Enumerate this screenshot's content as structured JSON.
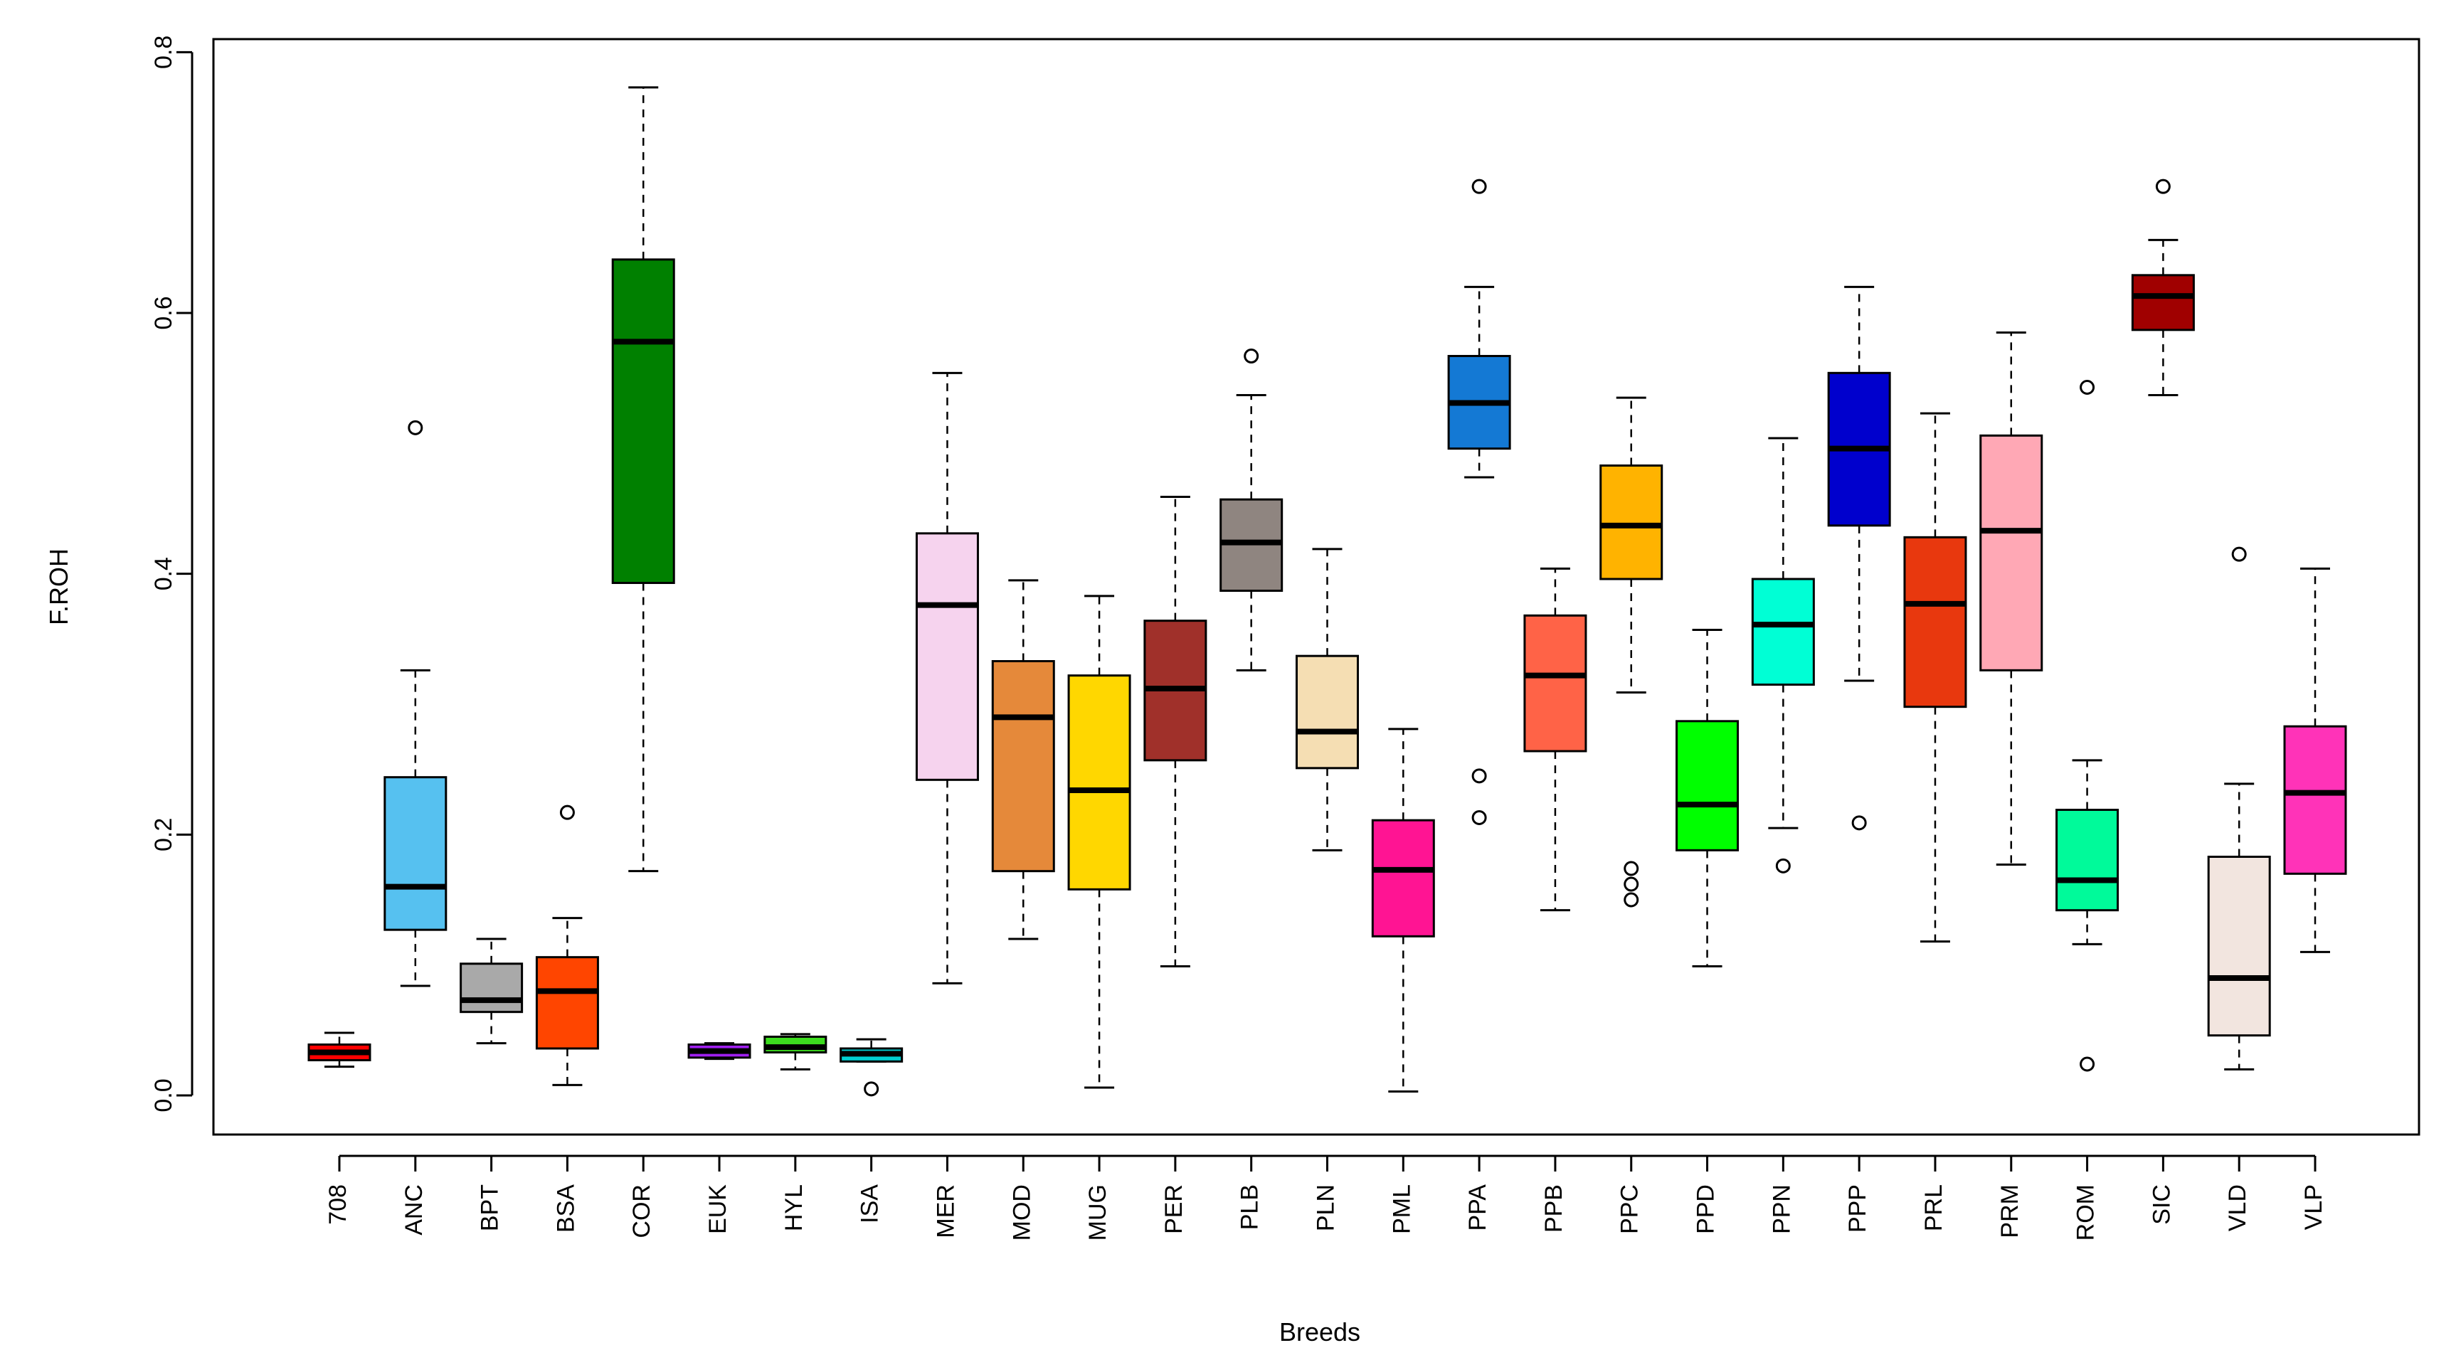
{
  "chart_data": {
    "type": "boxplot",
    "title": "",
    "xlabel": "Breeds",
    "ylabel": "F.ROH",
    "ylim": [
      -0.03,
      0.81
    ],
    "yticks": [
      "0.0",
      "0.2",
      "0.4",
      "0.6",
      "0.8"
    ],
    "grid": false,
    "categories": [
      "708",
      "ANC",
      "BPT",
      "BSA",
      "COR",
      "EUK",
      "HYL",
      "ISA",
      "MER",
      "MOD",
      "MUG",
      "PER",
      "PLB",
      "PLN",
      "PML",
      "PPA",
      "PPB",
      "PPC",
      "PPD",
      "PPN",
      "PPP",
      "PRL",
      "PRM",
      "ROM",
      "SIC",
      "VLD",
      "VLP"
    ],
    "boxes": [
      {
        "name": "708",
        "color": "#FF0000",
        "whisker_low": 0.022,
        "q1": 0.027,
        "median": 0.033,
        "q3": 0.039,
        "whisker_high": 0.048,
        "outliers": []
      },
      {
        "name": "ANC",
        "color": "#56C1F0",
        "whisker_low": 0.084,
        "q1": 0.127,
        "median": 0.16,
        "q3": 0.244,
        "whisker_high": 0.326,
        "outliers": [
          0.512
        ]
      },
      {
        "name": "BPT",
        "color": "#A9A9A9",
        "whisker_low": 0.04,
        "q1": 0.064,
        "median": 0.073,
        "q3": 0.101,
        "whisker_high": 0.12,
        "outliers": []
      },
      {
        "name": "BSA",
        "color": "#FF4500",
        "whisker_low": 0.008,
        "q1": 0.036,
        "median": 0.08,
        "q3": 0.106,
        "whisker_high": 0.136,
        "outliers": [
          0.217
        ]
      },
      {
        "name": "COR",
        "color": "#008000",
        "whisker_low": 0.172,
        "q1": 0.393,
        "median": 0.578,
        "q3": 0.641,
        "whisker_high": 0.773,
        "outliers": []
      },
      {
        "name": "EUK",
        "color": "#A020F0",
        "whisker_low": 0.028,
        "q1": 0.029,
        "median": 0.034,
        "q3": 0.039,
        "whisker_high": 0.04,
        "outliers": []
      },
      {
        "name": "HYL",
        "color": "#3CDC1E",
        "whisker_low": 0.02,
        "q1": 0.033,
        "median": 0.037,
        "q3": 0.045,
        "whisker_high": 0.047,
        "outliers": []
      },
      {
        "name": "ISA",
        "color": "#00CED1",
        "whisker_low": 0.026,
        "q1": 0.026,
        "median": 0.032,
        "q3": 0.036,
        "whisker_high": 0.043,
        "outliers": [
          0.005
        ]
      },
      {
        "name": "MER",
        "color": "#F6D3EE",
        "whisker_low": 0.086,
        "q1": 0.242,
        "median": 0.376,
        "q3": 0.431,
        "whisker_high": 0.554,
        "outliers": []
      },
      {
        "name": "MOD",
        "color": "#E5893A",
        "whisker_low": 0.12,
        "q1": 0.172,
        "median": 0.29,
        "q3": 0.333,
        "whisker_high": 0.395,
        "outliers": []
      },
      {
        "name": "MUG",
        "color": "#FFD700",
        "whisker_low": 0.006,
        "q1": 0.158,
        "median": 0.234,
        "q3": 0.322,
        "whisker_high": 0.383,
        "outliers": []
      },
      {
        "name": "PER",
        "color": "#A0302A",
        "whisker_low": 0.099,
        "q1": 0.257,
        "median": 0.312,
        "q3": 0.364,
        "whisker_high": 0.459,
        "outliers": []
      },
      {
        "name": "PLB",
        "color": "#8F8580",
        "whisker_low": 0.326,
        "q1": 0.387,
        "median": 0.424,
        "q3": 0.457,
        "whisker_high": 0.537,
        "outliers": [
          0.567
        ]
      },
      {
        "name": "PLN",
        "color": "#F5DEB3",
        "whisker_low": 0.188,
        "q1": 0.251,
        "median": 0.279,
        "q3": 0.337,
        "whisker_high": 0.419,
        "outliers": []
      },
      {
        "name": "PML",
        "color": "#FF1493",
        "whisker_low": 0.003,
        "q1": 0.122,
        "median": 0.173,
        "q3": 0.211,
        "whisker_high": 0.281,
        "outliers": []
      },
      {
        "name": "PPA",
        "color": "#1479D4",
        "whisker_low": 0.474,
        "q1": 0.496,
        "median": 0.531,
        "q3": 0.567,
        "whisker_high": 0.62,
        "outliers": [
          0.697,
          0.245,
          0.213
        ]
      },
      {
        "name": "PPB",
        "color": "#FF6347",
        "whisker_low": 0.142,
        "q1": 0.264,
        "median": 0.322,
        "q3": 0.368,
        "whisker_high": 0.404,
        "outliers": []
      },
      {
        "name": "PPC",
        "color": "#FFB300",
        "whisker_low": 0.309,
        "q1": 0.396,
        "median": 0.437,
        "q3": 0.483,
        "whisker_high": 0.535,
        "outliers": [
          0.174,
          0.162,
          0.15
        ]
      },
      {
        "name": "PPD",
        "color": "#00FF00",
        "whisker_low": 0.099,
        "q1": 0.188,
        "median": 0.223,
        "q3": 0.287,
        "whisker_high": 0.357,
        "outliers": []
      },
      {
        "name": "PPN",
        "color": "#00FFD5",
        "whisker_low": 0.205,
        "q1": 0.315,
        "median": 0.361,
        "q3": 0.396,
        "whisker_high": 0.504,
        "outliers": [
          0.176
        ]
      },
      {
        "name": "PPP",
        "color": "#0000CD",
        "whisker_low": 0.318,
        "q1": 0.437,
        "median": 0.496,
        "q3": 0.554,
        "whisker_high": 0.62,
        "outliers": [
          0.209
        ]
      },
      {
        "name": "PRL",
        "color": "#E8380E",
        "whisker_low": 0.118,
        "q1": 0.298,
        "median": 0.377,
        "q3": 0.428,
        "whisker_high": 0.523,
        "outliers": []
      },
      {
        "name": "PRM",
        "color": "#FFA8B5",
        "whisker_low": 0.177,
        "q1": 0.326,
        "median": 0.433,
        "q3": 0.506,
        "whisker_high": 0.585,
        "outliers": []
      },
      {
        "name": "ROM",
        "color": "#00FA9A",
        "whisker_low": 0.116,
        "q1": 0.142,
        "median": 0.165,
        "q3": 0.219,
        "whisker_high": 0.257,
        "outliers": [
          0.543,
          0.024
        ]
      },
      {
        "name": "SIC",
        "color": "#A00000",
        "whisker_low": 0.537,
        "q1": 0.587,
        "median": 0.613,
        "q3": 0.629,
        "whisker_high": 0.656,
        "outliers": [
          0.697
        ]
      },
      {
        "name": "VLD",
        "color": "#F2E5DF",
        "whisker_low": 0.02,
        "q1": 0.046,
        "median": 0.09,
        "q3": 0.183,
        "whisker_high": 0.239,
        "outliers": [
          0.415
        ]
      },
      {
        "name": "VLP",
        "color": "#FF33B8",
        "whisker_low": 0.11,
        "q1": 0.17,
        "median": 0.232,
        "q3": 0.283,
        "whisker_high": 0.404,
        "outliers": []
      }
    ]
  }
}
